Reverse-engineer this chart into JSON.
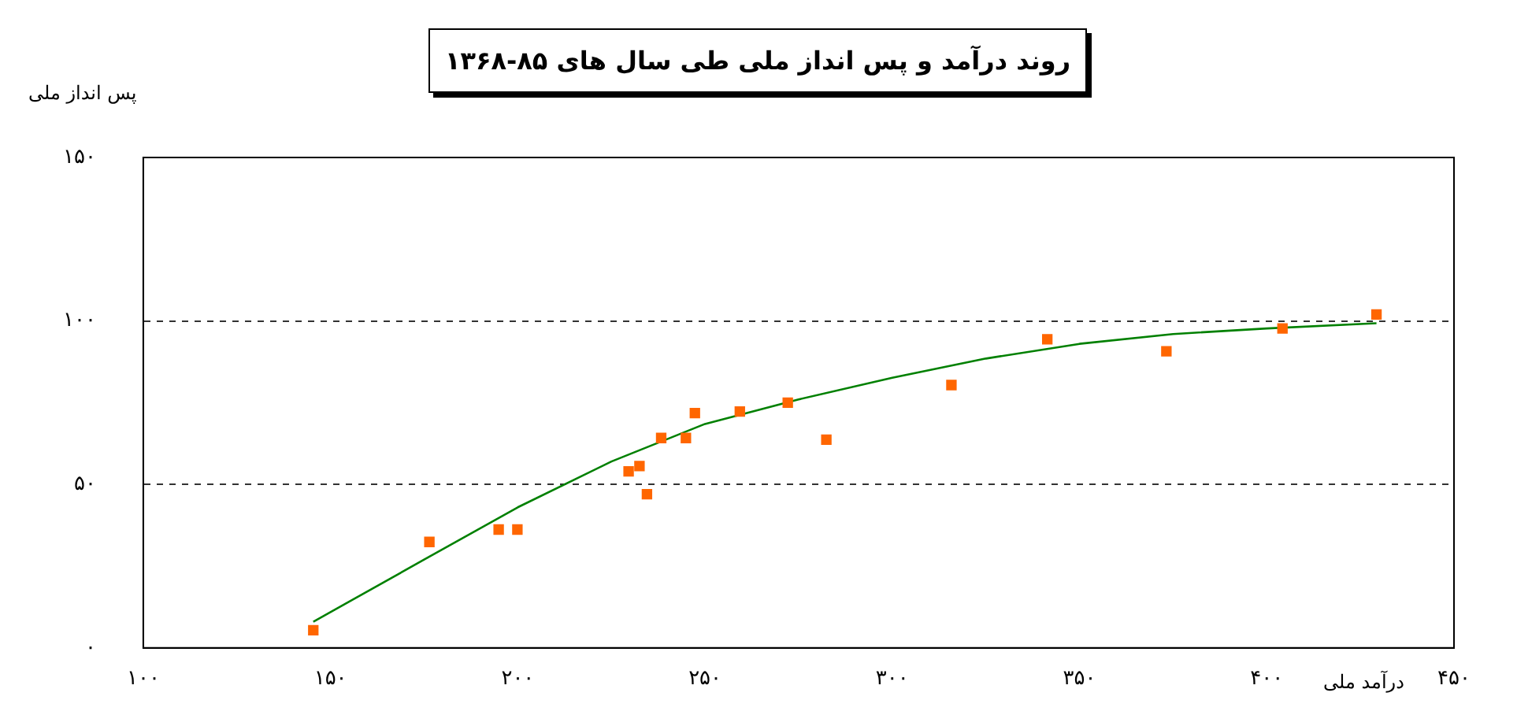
{
  "chart_data": {
    "type": "scatter",
    "title": "روند درآمد و پس انداز ملی طی سال های ۸۵-۱۳۶۸",
    "xlabel": "درآمد ملی",
    "ylabel": "پس انداز ملی",
    "series": [
      {
        "color": "#ff6600",
        "marker": "square",
        "x": [
          145.4,
          176.4,
          194.9,
          199.9,
          229.6,
          232.5,
          234.5,
          238.3,
          244.9,
          247.3,
          259.3,
          272.1,
          282.4,
          315.8,
          341.4,
          373.2,
          404.2,
          429.3
        ],
        "values": [
          5.4,
          32.4,
          36.2,
          36.2,
          54,
          55.6,
          47,
          64.2,
          64.2,
          71.8,
          72.3,
          75,
          63.7,
          80.4,
          94.4,
          90.7,
          97.7,
          102
        ]
      },
      {
        "type": "line",
        "color": "#008000",
        "marker": "none",
        "x": [
          145.4,
          175,
          200,
          225,
          250,
          275,
          300,
          325,
          350,
          375,
          400,
          429.3
        ],
        "values": [
          8,
          27,
          43,
          57,
          68.5,
          76,
          82.6,
          88.5,
          93,
          96,
          97.7,
          99.3
        ]
      }
    ],
    "xlim": [
      100,
      450
    ],
    "ylim": [
      0,
      150
    ],
    "xticks": [
      {
        "value": 100,
        "label": "۱۰۰"
      },
      {
        "value": 150,
        "label": "۱۵۰"
      },
      {
        "value": 200,
        "label": "۲۰۰"
      },
      {
        "value": 250,
        "label": "۲۵۰"
      },
      {
        "value": 300,
        "label": "۳۰۰"
      },
      {
        "value": 350,
        "label": "۳۵۰"
      },
      {
        "value": 400,
        "label": "۴۰۰"
      },
      {
        "value": 450,
        "label": "۴۵۰"
      }
    ],
    "yticks": [
      {
        "value": 0,
        "label": "۰"
      },
      {
        "value": 50,
        "label": "۵۰"
      },
      {
        "value": 100,
        "label": "۱۰۰"
      },
      {
        "value": 150,
        "label": "۱۵۰"
      }
    ],
    "grid": "y",
    "legend": false
  }
}
